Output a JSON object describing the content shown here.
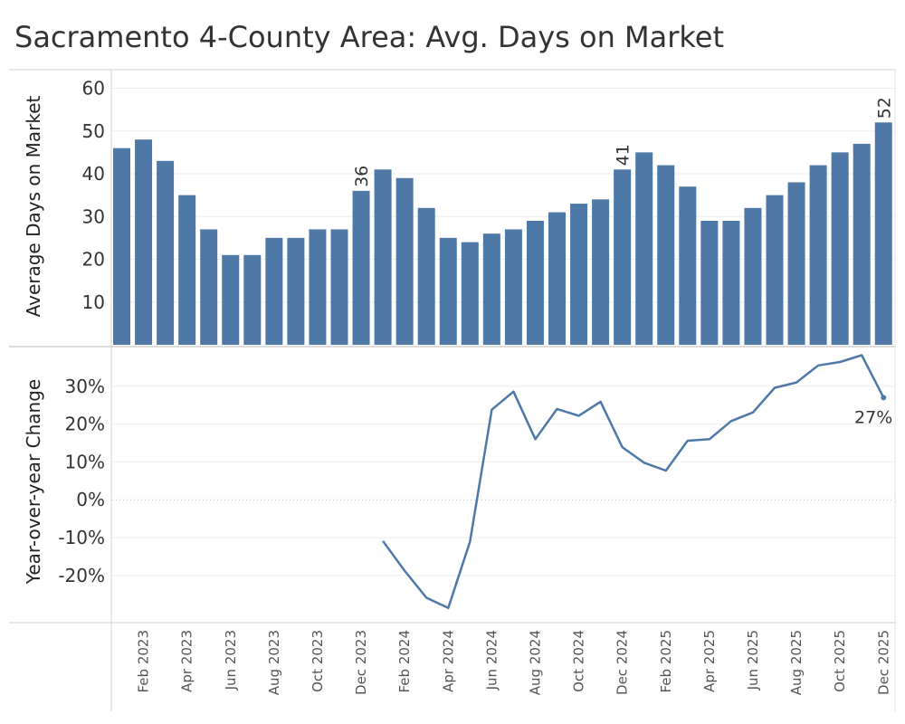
{
  "title": "Sacramento 4-County Area: Avg. Days on Market",
  "colors": {
    "bar": "#4e79a7",
    "line": "#4e79a7",
    "grid": "#eeeeee",
    "axis": "#cccccc"
  },
  "chart_data": [
    {
      "type": "bar",
      "ylabel": "Average Days on Market",
      "ylim": [
        0,
        62
      ],
      "yticks": [
        10,
        20,
        30,
        40,
        50,
        60
      ],
      "grid": true,
      "categories": [
        "Jan 2023",
        "Feb 2023",
        "Mar 2023",
        "Apr 2023",
        "May 2023",
        "Jun 2023",
        "Jul 2023",
        "Aug 2023",
        "Sep 2023",
        "Oct 2023",
        "Nov 2023",
        "Dec 2023",
        "Jan 2024",
        "Feb 2024",
        "Mar 2024",
        "Apr 2024",
        "May 2024",
        "Jun 2024",
        "Jul 2024",
        "Aug 2024",
        "Sep 2024",
        "Oct 2024",
        "Nov 2024",
        "Dec 2024",
        "Jan 2025",
        "Feb 2025",
        "Mar 2025",
        "Apr 2025",
        "May 2025",
        "Jun 2025",
        "Jul 2025",
        "Aug 2025",
        "Sep 2025",
        "Oct 2025",
        "Nov 2025",
        "Dec 2025"
      ],
      "values": [
        46,
        48,
        43,
        35,
        27,
        21,
        21,
        25,
        25,
        27,
        27,
        36,
        41,
        39,
        32,
        25,
        24,
        26,
        27,
        29,
        31,
        33,
        34,
        41,
        45,
        42,
        37,
        29,
        29,
        32,
        35,
        38,
        42,
        45,
        47,
        52
      ],
      "data_labels": [
        {
          "category": "Dec 2023",
          "text": "36"
        },
        {
          "category": "Dec 2024",
          "text": "41"
        },
        {
          "category": "Dec 2025",
          "text": "52"
        }
      ]
    },
    {
      "type": "line",
      "ylabel": "Year-over-year Change",
      "ylim": [
        -32,
        40
      ],
      "yticks": [
        -20,
        -10,
        0,
        10,
        20,
        30
      ],
      "ytick_labels": [
        "-20%",
        "-10%",
        "0%",
        "10%",
        "20%",
        "30%"
      ],
      "grid": true,
      "x": [
        "Jan 2024",
        "Feb 2024",
        "Mar 2024",
        "Apr 2024",
        "May 2024",
        "Jun 2024",
        "Jul 2024",
        "Aug 2024",
        "Sep 2024",
        "Oct 2024",
        "Nov 2024",
        "Dec 2024",
        "Jan 2025",
        "Feb 2025",
        "Mar 2025",
        "Apr 2025",
        "May 2025",
        "Jun 2025",
        "Jul 2025",
        "Aug 2025",
        "Sep 2025",
        "Oct 2025",
        "Nov 2025",
        "Dec 2025"
      ],
      "values": [
        -10.9,
        -18.8,
        -25.9,
        -28.6,
        -11.1,
        23.8,
        28.6,
        16.0,
        24.0,
        22.2,
        25.9,
        13.9,
        9.8,
        7.7,
        15.6,
        16.0,
        20.8,
        23.1,
        29.6,
        31.0,
        35.5,
        36.4,
        38.2,
        27.0
      ],
      "end_label": "27%"
    }
  ],
  "xaxis": {
    "tick_labels": [
      "Feb 2023",
      "Apr 2023",
      "Jun 2023",
      "Aug 2023",
      "Oct 2023",
      "Dec 2023",
      "Feb 2024",
      "Apr 2024",
      "Jun 2024",
      "Aug 2024",
      "Oct 2024",
      "Dec 2024",
      "Feb 2025",
      "Apr 2025",
      "Jun 2025",
      "Aug 2025",
      "Oct 2025",
      "Dec 2025"
    ]
  }
}
